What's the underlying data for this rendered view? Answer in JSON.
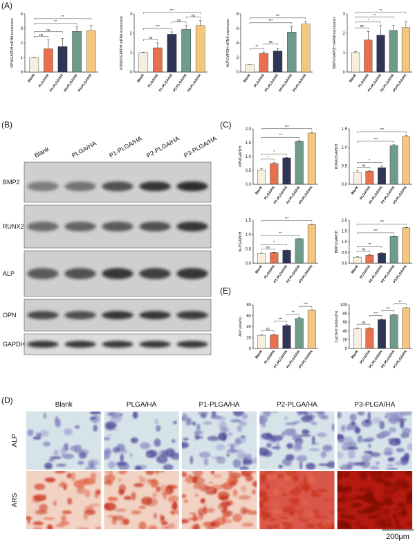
{
  "panel_labels": [
    "(A)",
    "(B)",
    "(C)",
    "(D)",
    "(E)"
  ],
  "blot": {
    "lanes": [
      "Blank",
      "PLGA/HA",
      "P1-PLGA/HA",
      "P2-PLGA/HA",
      "P3-PLGA/HA"
    ],
    "rows": [
      "BMP2",
      "RUNX2",
      "ALP",
      "OPN",
      "GAPDH"
    ]
  },
  "staining": {
    "columns": [
      "Blank",
      "PLGA/HA",
      "P1-PLGA/HA",
      "P2-PLGA/HA",
      "P3-PLGA/HA"
    ],
    "rows": [
      "ALP",
      "ARS"
    ],
    "scale_bar": "200μm"
  },
  "chart_data": [
    {
      "type": "bar",
      "ylabel": "OPN/GAPDH mRNA expression",
      "categories": [
        "Blank",
        "PLGA/HA",
        "P1-PLGA/HA",
        "P2-PLGA/HA",
        "P3-PLGA/HA"
      ],
      "colors": [
        "#f6efdf",
        "#e8704f",
        "#2f3557",
        "#6f9b8a",
        "#f5c77e"
      ],
      "values": [
        1.0,
        1.6,
        1.75,
        2.8,
        2.85
      ],
      "errors": [
        0.03,
        0.6,
        0.55,
        0.3,
        0.35
      ],
      "ylim": [
        0,
        4
      ],
      "yticks": [
        0,
        1,
        2,
        3,
        4
      ],
      "annotations": [
        {
          "label": "**",
          "between": [
            "Blank",
            "P3-PLGA/HA"
          ]
        },
        {
          "label": "**",
          "between": [
            "Blank",
            "P2-PLGA/HA"
          ]
        },
        {
          "label": "ns",
          "between": [
            "Blank",
            "P1-PLGA/HA"
          ]
        },
        {
          "label": "ns",
          "between": [
            "Blank",
            "PLGA/HA"
          ]
        }
      ]
    },
    {
      "type": "bar",
      "ylabel": "RUNX2/GAPDH mRNA expression",
      "categories": [
        "Blank",
        "PLGA/HA",
        "P1-PLGA/HA",
        "P2-PLGA/HA",
        "P3-PLGA/HA"
      ],
      "colors": [
        "#f6efdf",
        "#e8704f",
        "#2f3557",
        "#6f9b8a",
        "#f5c77e"
      ],
      "values": [
        1.0,
        1.25,
        1.95,
        2.2,
        2.4
      ],
      "errors": [
        0.03,
        0.25,
        0.12,
        0.2,
        0.25
      ],
      "ylim": [
        0,
        3
      ],
      "yticks": [
        0,
        1,
        2,
        3
      ],
      "annotations": [
        {
          "label": "***",
          "between": [
            "Blank",
            "P3-PLGA/HA"
          ]
        },
        {
          "label": "ns",
          "between": [
            "P2-PLGA/HA",
            "P3-PLGA/HA"
          ]
        },
        {
          "label": "ns",
          "between": [
            "P1-PLGA/HA",
            "P2-PLGA/HA"
          ]
        },
        {
          "label": "***",
          "between": [
            "Blank",
            "P1-PLGA/HA"
          ]
        },
        {
          "label": "ns",
          "between": [
            "Blank",
            "PLGA/HA"
          ]
        }
      ]
    },
    {
      "type": "bar",
      "ylabel": "ALP/GAPDH mRNA expression",
      "categories": [
        "Blank",
        "PLGA/HA",
        "P1-PLGA/HA",
        "P2-PLGA/HA",
        "P3-PLGA/HA"
      ],
      "colors": [
        "#f6efdf",
        "#e8704f",
        "#2f3557",
        "#6f9b8a",
        "#f5c77e"
      ],
      "values": [
        1.0,
        2.55,
        2.9,
        5.5,
        6.6
      ],
      "errors": [
        0.05,
        0.2,
        0.3,
        0.8,
        0.35
      ],
      "ylim": [
        0,
        8
      ],
      "yticks": [
        0,
        2,
        4,
        6,
        8
      ],
      "annotations": [
        {
          "label": "***",
          "between": [
            "Blank",
            "P3-PLGA/HA"
          ]
        },
        {
          "label": "***",
          "between": [
            "Blank",
            "P2-PLGA/HA"
          ]
        },
        {
          "label": "ns",
          "between": [
            "PLGA/HA",
            "P1-PLGA/HA"
          ]
        },
        {
          "label": "**",
          "between": [
            "Blank",
            "PLGA/HA"
          ]
        }
      ]
    },
    {
      "type": "bar",
      "ylabel": "BMP2/GAPDH mRNA expression",
      "categories": [
        "Blank",
        "PLGA/HA",
        "P1-PLGA/HA",
        "P2-PLGA/HA",
        "P3-PLGA/HA"
      ],
      "colors": [
        "#f6efdf",
        "#e8704f",
        "#2f3557",
        "#6f9b8a",
        "#f5c77e"
      ],
      "values": [
        1.0,
        1.65,
        1.9,
        2.15,
        2.3
      ],
      "errors": [
        0.05,
        0.45,
        0.5,
        0.25,
        0.3
      ],
      "ylim": [
        0,
        3
      ],
      "yticks": [
        0,
        1,
        2,
        3
      ],
      "annotations": [
        {
          "label": "**",
          "between": [
            "Blank",
            "P3-PLGA/HA"
          ]
        },
        {
          "label": "**",
          "between": [
            "Blank",
            "P2-PLGA/HA"
          ]
        },
        {
          "label": "*",
          "between": [
            "Blank",
            "P1-PLGA/HA"
          ]
        },
        {
          "label": "ns",
          "between": [
            "Blank",
            "PLGA/HA"
          ]
        }
      ]
    },
    {
      "type": "bar",
      "ylabel": "OPN/GAPDH",
      "categories": [
        "Blank",
        "PLGA/HA",
        "P1-PLGA/HA",
        "P2-PLGA/HA",
        "P3-PLGA/HA"
      ],
      "colors": [
        "#f6efdf",
        "#e8704f",
        "#2f3557",
        "#6f9b8a",
        "#f5c77e"
      ],
      "values": [
        0.52,
        0.75,
        0.95,
        1.55,
        1.85
      ],
      "errors": [
        0.05,
        0.03,
        0.02,
        0.02,
        0.03
      ],
      "ylim": [
        0,
        2
      ],
      "yticks": [
        {
          "value": 0,
          "label": "0.0"
        },
        {
          "value": 0.5,
          "label": "0.5"
        },
        {
          "value": 1,
          "label": "1.0"
        },
        {
          "value": 1.5,
          "label": "1.5"
        },
        {
          "value": 2,
          "label": "2.0"
        }
      ],
      "annotations": [
        {
          "label": "***",
          "between": [
            "Blank",
            "P3-PLGA/HA"
          ]
        },
        {
          "label": "**",
          "between": [
            "Blank",
            "P2-PLGA/HA"
          ]
        },
        {
          "label": "*",
          "between": [
            "Blank",
            "P1-PLGA/HA"
          ]
        },
        {
          "label": "*",
          "between": [
            "Blank",
            "PLGA/HA"
          ]
        }
      ]
    },
    {
      "type": "bar",
      "ylabel": "RUNX2/GAPDH",
      "categories": [
        "Blank",
        "PLGA/HA",
        "P1-PLGA/HA",
        "P2-PLGA/HA",
        "P3-PLGA/HA"
      ],
      "colors": [
        "#f6efdf",
        "#e8704f",
        "#2f3557",
        "#6f9b8a",
        "#f5c77e"
      ],
      "values": [
        0.33,
        0.35,
        0.45,
        1.05,
        1.3
      ],
      "errors": [
        0.03,
        0.02,
        0.04,
        0.02,
        0.03
      ],
      "ylim": [
        0,
        1.5
      ],
      "yticks": [
        {
          "value": 0,
          "label": "0.0"
        },
        {
          "value": 0.5,
          "label": "0.5"
        },
        {
          "value": 1,
          "label": "1.0"
        },
        {
          "value": 1.5,
          "label": "1.5"
        }
      ],
      "annotations": [
        {
          "label": "***",
          "between": [
            "Blank",
            "P3-PLGA/HA"
          ]
        },
        {
          "label": "***",
          "between": [
            "Blank",
            "P2-PLGA/HA"
          ]
        },
        {
          "label": "*",
          "between": [
            "Blank",
            "P1-PLGA/HA"
          ]
        },
        {
          "label": "ns",
          "between": [
            "Blank",
            "PLGA/HA"
          ]
        }
      ]
    },
    {
      "type": "bar",
      "ylabel": "ALP/GAPDH",
      "categories": [
        "Blank",
        "PLGA/HA",
        "P1-PLGA/HA",
        "P2-PLGA/HA",
        "P3-PLGA/HA"
      ],
      "colors": [
        "#f6efdf",
        "#e8704f",
        "#2f3557",
        "#6f9b8a",
        "#f5c77e"
      ],
      "values": [
        0.35,
        0.37,
        0.45,
        0.85,
        1.35
      ],
      "errors": [
        0.01,
        0.01,
        0.01,
        0.01,
        0.02
      ],
      "ylim": [
        0,
        1.5
      ],
      "yticks": [
        {
          "value": 0,
          "label": "0.0"
        },
        {
          "value": 0.5,
          "label": "0.5"
        },
        {
          "value": 1,
          "label": "1.0"
        },
        {
          "value": 1.5,
          "label": "1.5"
        }
      ],
      "annotations": [
        {
          "label": "***",
          "between": [
            "Blank",
            "P3-PLGA/HA"
          ]
        },
        {
          "label": "**",
          "between": [
            "Blank",
            "P2-PLGA/HA"
          ]
        },
        {
          "label": "*",
          "between": [
            "Blank",
            "P1-PLGA/HA"
          ]
        },
        {
          "label": "ns",
          "between": [
            "Blank",
            "PLGA/HA"
          ]
        }
      ]
    },
    {
      "type": "bar",
      "ylabel": "BMP2/GAPDH",
      "categories": [
        "Blank",
        "PLGA/HA",
        "P1-PLGA/HA",
        "P2-PLGA/HA",
        "P3-PLGA/HA"
      ],
      "colors": [
        "#f6efdf",
        "#e8704f",
        "#2f3557",
        "#6f9b8a",
        "#f5c77e"
      ],
      "values": [
        0.28,
        0.38,
        0.47,
        1.25,
        1.65
      ],
      "errors": [
        0.02,
        0.02,
        0.02,
        0.01,
        0.02
      ],
      "ylim": [
        0,
        2
      ],
      "yticks": [
        {
          "value": 0,
          "label": "0.0"
        },
        {
          "value": 0.5,
          "label": "0.5"
        },
        {
          "value": 1,
          "label": "1.0"
        },
        {
          "value": 1.5,
          "label": "1.5"
        },
        {
          "value": 2,
          "label": "2.0"
        }
      ],
      "annotations": [
        {
          "label": "***",
          "between": [
            "Blank",
            "P3-PLGA/HA"
          ]
        },
        {
          "label": "***",
          "between": [
            "Blank",
            "P2-PLGA/HA"
          ]
        },
        {
          "label": "**",
          "between": [
            "Blank",
            "P1-PLGA/HA"
          ]
        },
        {
          "label": "ns",
          "between": [
            "Blank",
            "PLGA/HA"
          ]
        }
      ]
    },
    {
      "type": "bar",
      "ylabel": "ALP area(%)",
      "categories": [
        "Blank",
        "PLGA/HA",
        "P1-PLGA/HA",
        "P2-PLGA/HA",
        "P3-PLGA/HA"
      ],
      "colors": [
        "#f6efdf",
        "#e8704f",
        "#2f3557",
        "#6f9b8a",
        "#f5c77e"
      ],
      "values": [
        24,
        25,
        42,
        55,
        70
      ],
      "errors": [
        1,
        1,
        1.5,
        1.5,
        1
      ],
      "ylim": [
        0,
        80
      ],
      "yticks": [
        0,
        20,
        40,
        60,
        80
      ],
      "annotations": [
        {
          "label": "***",
          "between": [
            "P2-PLGA/HA",
            "P3-PLGA/HA"
          ]
        },
        {
          "label": "**",
          "between": [
            "P1-PLGA/HA",
            "P2-PLGA/HA"
          ]
        },
        {
          "label": "***",
          "between": [
            "PLGA/HA",
            "P1-PLGA/HA"
          ]
        },
        {
          "label": "ns",
          "between": [
            "Blank",
            "PLGA/HA"
          ]
        }
      ]
    },
    {
      "type": "bar",
      "ylabel": "Calcified nodules(%)",
      "categories": [
        "Blank",
        "PLGA/HA",
        "P1-PLGA/HA",
        "P2-PLGA/HA",
        "P3-PLGA/HA"
      ],
      "colors": [
        "#f6efdf",
        "#e8704f",
        "#2f3557",
        "#6f9b8a",
        "#f5c77e"
      ],
      "values": [
        45,
        46,
        66,
        77,
        93
      ],
      "errors": [
        1.5,
        1.5,
        1.5,
        1.5,
        1
      ],
      "ylim": [
        0,
        100
      ],
      "yticks": [
        0,
        20,
        40,
        60,
        80,
        100
      ],
      "annotations": [
        {
          "label": "**",
          "between": [
            "P2-PLGA/HA",
            "P3-PLGA/HA"
          ]
        },
        {
          "label": "***",
          "between": [
            "P1-PLGA/HA",
            "P2-PLGA/HA"
          ]
        },
        {
          "label": "***",
          "between": [
            "PLGA/HA",
            "P1-PLGA/HA"
          ]
        },
        {
          "label": "ns",
          "between": [
            "Blank",
            "PLGA/HA"
          ]
        }
      ]
    }
  ]
}
